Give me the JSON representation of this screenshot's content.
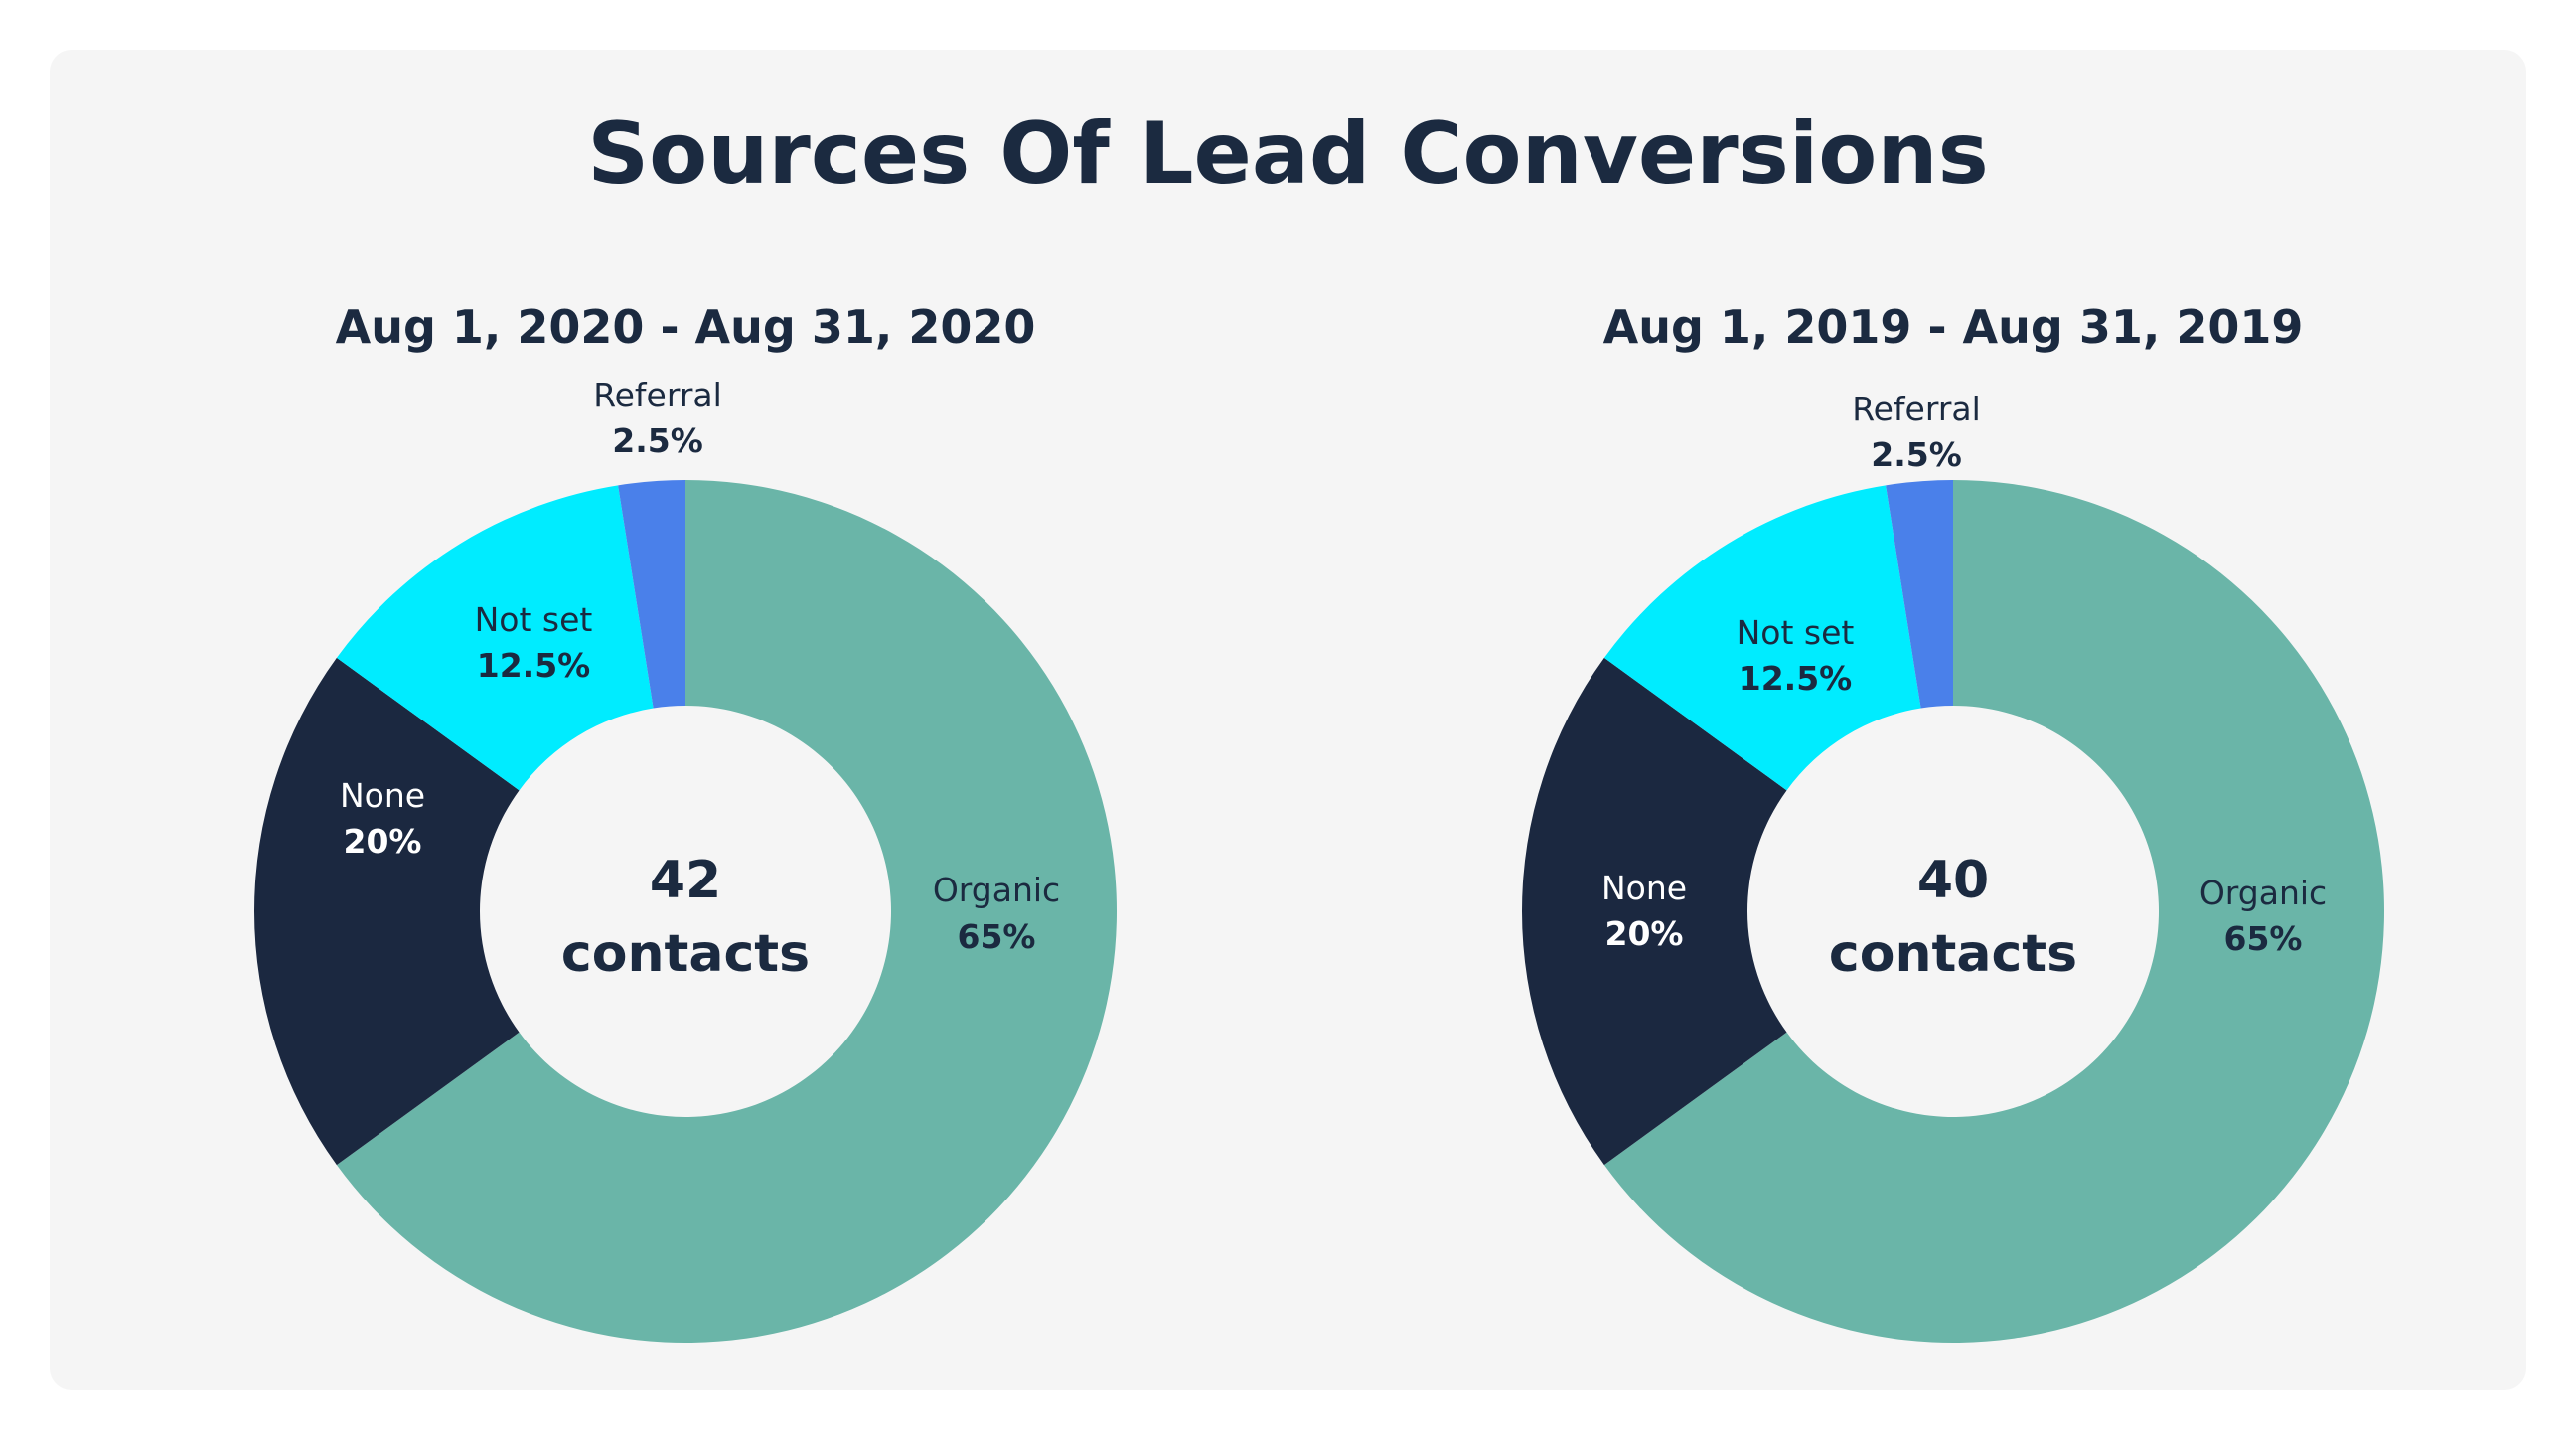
{
  "title": "Sources Of Lead Conversions",
  "chart_data": [
    {
      "type": "pie",
      "subtitle": "Aug 1, 2020 - Aug 31, 2020",
      "center": {
        "value": "42",
        "unit": "contacts"
      },
      "slices": [
        {
          "label": "Organic",
          "value": 65,
          "display": "65%",
          "color": "#6ab5a8",
          "text_color": "#1b2a40"
        },
        {
          "label": "None",
          "value": 20,
          "display": "20%",
          "color": "#1b2840",
          "text_color": "#ffffff"
        },
        {
          "label": "Not set",
          "value": 12.5,
          "display": "12.5%",
          "color": "#00ecff",
          "text_color": "#1b2a40"
        },
        {
          "label": "Referral",
          "value": 2.5,
          "display": "2.5%",
          "color": "#4a80ea",
          "text_color": "#1b2a40"
        }
      ]
    },
    {
      "type": "pie",
      "subtitle": "Aug 1, 2019 - Aug 31, 2019",
      "center": {
        "value": "40",
        "unit": "contacts"
      },
      "slices": [
        {
          "label": "Organic",
          "value": 65,
          "display": "65%",
          "color": "#6ab5a8",
          "text_color": "#1b2a40"
        },
        {
          "label": "None",
          "value": 20,
          "display": "20%",
          "color": "#1b2840",
          "text_color": "#ffffff"
        },
        {
          "label": "Not set",
          "value": 12.5,
          "display": "12.5%",
          "color": "#00ecff",
          "text_color": "#1b2a40"
        },
        {
          "label": "Referral",
          "value": 2.5,
          "display": "2.5%",
          "color": "#4a80ea",
          "text_color": "#1b2a40"
        }
      ]
    }
  ]
}
